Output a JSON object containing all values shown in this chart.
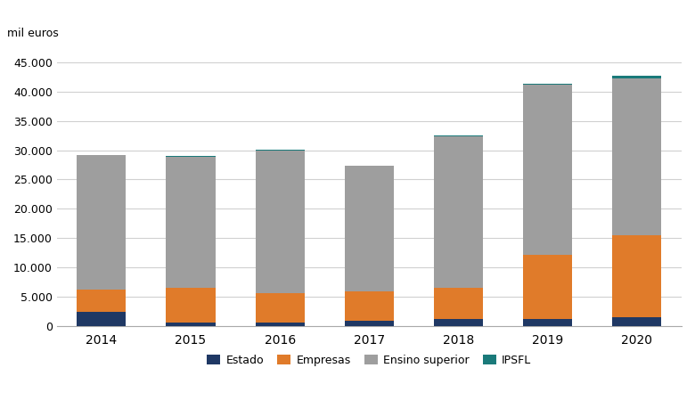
{
  "years": [
    "2014",
    "2015",
    "2016",
    "2017",
    "2018",
    "2019",
    "2020"
  ],
  "estado": [
    2400,
    700,
    600,
    900,
    1200,
    1200,
    1500
  ],
  "empresas": [
    3800,
    5800,
    5000,
    5000,
    5400,
    11000,
    14000
  ],
  "ipsfl": [
    100,
    100,
    100,
    100,
    100,
    150,
    450
  ],
  "ensino_superior": [
    22900,
    22400,
    24400,
    21400,
    25800,
    28950,
    26750
  ],
  "color_estado": "#1f3864",
  "color_empresas": "#e07b2a",
  "color_ensino": "#9e9e9e",
  "color_ipsfl": "#1a7a7a",
  "mil_euros_label": "mil euros",
  "ylim": [
    0,
    47000
  ],
  "yticks": [
    0,
    5000,
    10000,
    15000,
    20000,
    25000,
    30000,
    35000,
    40000,
    45000
  ],
  "legend_labels": [
    "Estado",
    "Empresas",
    "Ensino superior",
    "IPSFL"
  ],
  "background_color": "#ffffff",
  "grid_color": "#d0d0d0",
  "bar_width": 0.55
}
